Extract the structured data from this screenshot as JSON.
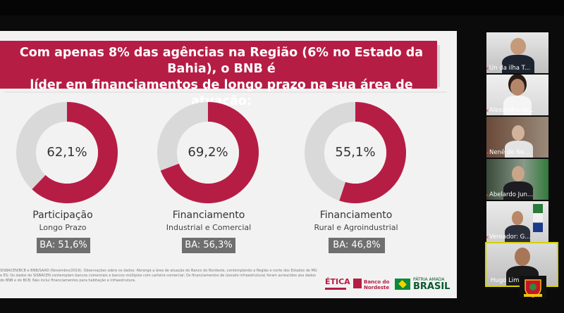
{
  "slide": {
    "headline_line1": "Com apenas 8% das agências na Região (6% no Estado da Bahia), o BNB é",
    "headline_line2": "líder em financiamentos de longo prazo na sua área de atuação:",
    "accent_color": "#b61d45",
    "gray_color": "#d9d9d9",
    "donuts": [
      {
        "percent_label": "62,1%",
        "value": 62.1,
        "title": "Participação",
        "subtitle": "Longo Prazo",
        "ba": "BA: 51,6%"
      },
      {
        "percent_label": "69,2%",
        "value": 69.2,
        "title": "Financiamento",
        "subtitle": "Industrial e Comercial",
        "ba": "BA: 56,3%"
      },
      {
        "percent_label": "55,1%",
        "value": 55.1,
        "title": "Financiamento",
        "subtitle": "Rural e Agroindustrial",
        "ba": "BA: 46,8%"
      }
    ],
    "footnote": "SISBACEN/BCB e BNB/SAAD (Novembro/2019). Observações sobre os dados: Abrange a área de atuação do Banco do Nordeste, contemplando a Região e norte dos Estados de MG e ES; Os dados do SISBACEN contemplam bancos comerciais e bancos múltiplos com carteira comercial; Os financiamentos de (exceto infraestrutura) foram acrescidos aos dados do BNB e do BCB; Não inclui financiamentos para habitação e infraestrutura.",
    "logos": {
      "etica": "ÉTICA",
      "bnb": "Banco do Nordeste",
      "brasil": "BRASIL",
      "brasil_top": "PÁTRIA AMADA"
    }
  },
  "participants": [
    {
      "name": "Un da ilha T...",
      "icon": "mic-muted-icon"
    },
    {
      "name": "Alexandra de...",
      "icon": "mic-muted-icon"
    },
    {
      "name": "Nenê de Ne...",
      "icon": "mic-muted-icon"
    },
    {
      "name": "Abelardo Jun...",
      "icon": "mic-muted-icon"
    },
    {
      "name": "Vereador: G...",
      "icon": "mic-muted-icon"
    },
    {
      "name": "Hugo Lima",
      "icon": "mic-muted-icon",
      "active": true
    }
  ]
}
